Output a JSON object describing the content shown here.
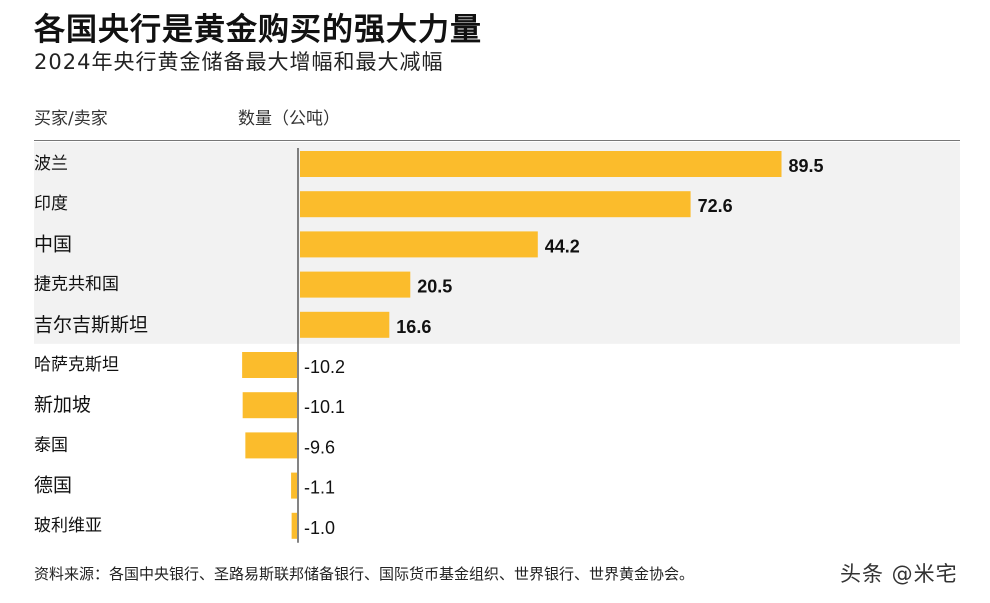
{
  "header": {
    "title": "各国央行是黄金购买的强大力量",
    "subtitle": "2024年央行黄金储备最大增幅和最大减幅",
    "col_buyer": "买家/卖家",
    "col_quantity": "数量（公吨）"
  },
  "chart_data": {
    "type": "bar",
    "orientation": "horizontal",
    "title": "各国央行是黄金购买的强大力量",
    "subtitle": "2024年央行黄金储备最大增幅和最大减幅",
    "xlabel": "数量（公吨）",
    "ylabel": "买家/卖家",
    "categories": [
      "波兰",
      "印度",
      "中国",
      "捷克共和国",
      "吉尔吉斯斯坦",
      "哈萨克斯坦",
      "新加坡",
      "泰国",
      "德国",
      "玻利维亚"
    ],
    "values": [
      89.5,
      72.6,
      44.2,
      20.5,
      16.6,
      -10.2,
      -10.1,
      -9.6,
      -1.1,
      -1.0
    ],
    "labels": [
      "89.5",
      "72.6",
      "44.2",
      "20.5",
      "16.6",
      "-10.2",
      "-10.1",
      "-9.6",
      "-1.1",
      "-1.0"
    ],
    "xlim": [
      -10.2,
      89.5
    ],
    "bar_color": "#fbbc2c",
    "highlight_background": "#f2f2f2",
    "highlighted_count": 5
  },
  "footer": {
    "source": "资料来源：各国中央银行、圣路易斯联邦储备银行、国际货币基金组织、世界银行、世界黄金协会。",
    "watermark": "头条 @米宅"
  }
}
